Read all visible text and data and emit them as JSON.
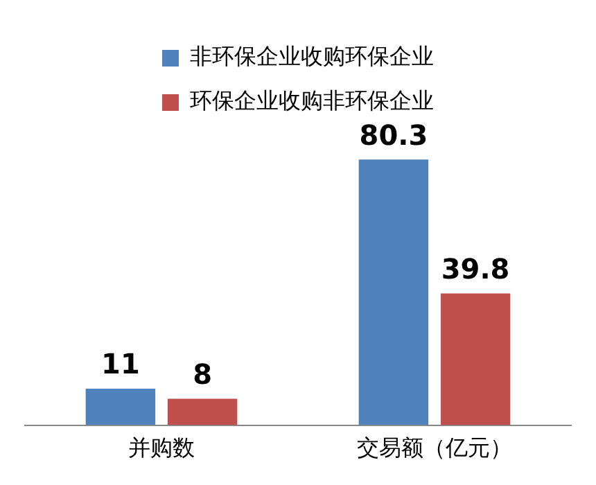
{
  "chart_data": {
    "type": "bar",
    "categories": [
      "并购数",
      "交易额（亿元）"
    ],
    "series": [
      {
        "name": "非环保企业收购环保企业",
        "color": "#4f81bd",
        "values": [
          11,
          80.3
        ]
      },
      {
        "name": "环保企业收购非环保企业",
        "color": "#c0504d",
        "values": [
          8,
          39.8
        ]
      }
    ],
    "data_labels": true,
    "legend": "top",
    "grid": false
  }
}
